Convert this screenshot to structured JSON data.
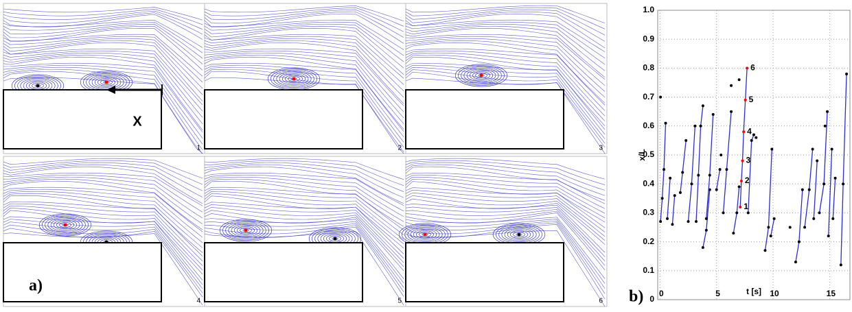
{
  "panels": {
    "labels": [
      "1",
      "2",
      "3",
      "4",
      "5",
      "6"
    ],
    "arrow_label": "X"
  },
  "figure_labels": {
    "a": "a)",
    "b": "b)"
  },
  "chart_data": {
    "type": "line",
    "xlabel": "t [s]",
    "ylabel": "x/L",
    "xlim": [
      -0.2,
      16.8
    ],
    "ylim": [
      0,
      1
    ],
    "xticks": [
      0,
      5,
      10,
      15
    ],
    "yticks": [
      0,
      0.1,
      0.2,
      0.3,
      0.4,
      0.5,
      0.6,
      0.7,
      0.8,
      0.9,
      {
        "value": 1,
        "label": "1.0"
      }
    ],
    "grid": true,
    "line_color": "#2b2bd6",
    "marker_color": "#000000",
    "series": [
      {
        "x": [
          0.05,
          0.2,
          0.35,
          0.5
        ],
        "values": [
          0.27,
          0.35,
          0.45,
          0.61
        ]
      },
      {
        "x": [
          0.65,
          0.9
        ],
        "values": [
          0.28,
          0.42
        ]
      },
      {
        "x": [
          1.1,
          1.3
        ],
        "values": [
          0.26,
          0.36
        ]
      },
      {
        "x": [
          1.8,
          2.0,
          2.3
        ],
        "values": [
          0.37,
          0.44,
          0.55
        ]
      },
      {
        "x": [
          2.5,
          2.8,
          3.1
        ],
        "values": [
          0.27,
          0.4,
          0.6
        ]
      },
      {
        "x": [
          3.2,
          3.4,
          3.6,
          3.8
        ],
        "values": [
          0.27,
          0.43,
          0.6,
          0.67
        ]
      },
      {
        "x": [
          3.8,
          4.1,
          4.4
        ],
        "values": [
          0.18,
          0.24,
          0.38
        ]
      },
      {
        "x": [
          4.1,
          4.4,
          4.7
        ],
        "values": [
          0.28,
          0.43,
          0.64
        ]
      },
      {
        "x": [
          5.0,
          5.3
        ],
        "values": [
          0.38,
          0.45
        ]
      },
      {
        "x": [
          5.6,
          5.9,
          6.3
        ],
        "values": [
          0.3,
          0.45,
          0.65
        ]
      },
      {
        "x": [
          6.5,
          6.8,
          7.0
        ],
        "values": [
          0.23,
          0.3,
          0.39
        ]
      },
      {
        "x": [
          7.8,
          8.1,
          8.3
        ],
        "values": [
          0.3,
          0.55,
          0.57
        ]
      },
      {
        "x": [
          9.3,
          9.6,
          9.9
        ],
        "values": [
          0.17,
          0.25,
          0.52
        ]
      },
      {
        "x": [
          9.8,
          10.1
        ],
        "values": [
          0.22,
          0.28
        ]
      },
      {
        "x": [
          12.0,
          12.3,
          12.6
        ],
        "values": [
          0.13,
          0.2,
          0.38
        ]
      },
      {
        "x": [
          12.8,
          13.2,
          13.5
        ],
        "values": [
          0.25,
          0.38,
          0.52
        ]
      },
      {
        "x": [
          13.6,
          13.9
        ],
        "values": [
          0.28,
          0.48
        ]
      },
      {
        "x": [
          14.1,
          14.5,
          14.8
        ],
        "values": [
          0.3,
          0.4,
          0.65
        ]
      },
      {
        "x": [
          14.9,
          15.2
        ],
        "values": [
          0.22,
          0.52
        ]
      },
      {
        "x": [
          15.3,
          15.5
        ],
        "values": [
          0.28,
          0.42
        ]
      },
      {
        "x": [
          16.0,
          16.2,
          16.5
        ],
        "values": [
          0.12,
          0.4,
          0.78
        ]
      },
      {
        "x": [
          7.1,
          7.2,
          7.3,
          7.4,
          7.55,
          7.7
        ],
        "values": [
          0.32,
          0.41,
          0.48,
          0.58,
          0.69,
          0.8
        ],
        "color": "#ff0000",
        "point_labels": [
          "1",
          "2",
          "3",
          "4",
          "5",
          "6"
        ]
      }
    ],
    "points": {
      "x": [
        0.05,
        7.0,
        5.4,
        8.5,
        14.6,
        11.5,
        6.3
      ],
      "values": [
        0.7,
        0.76,
        0.5,
        0.56,
        0.6,
        0.25,
        0.74
      ]
    }
  }
}
